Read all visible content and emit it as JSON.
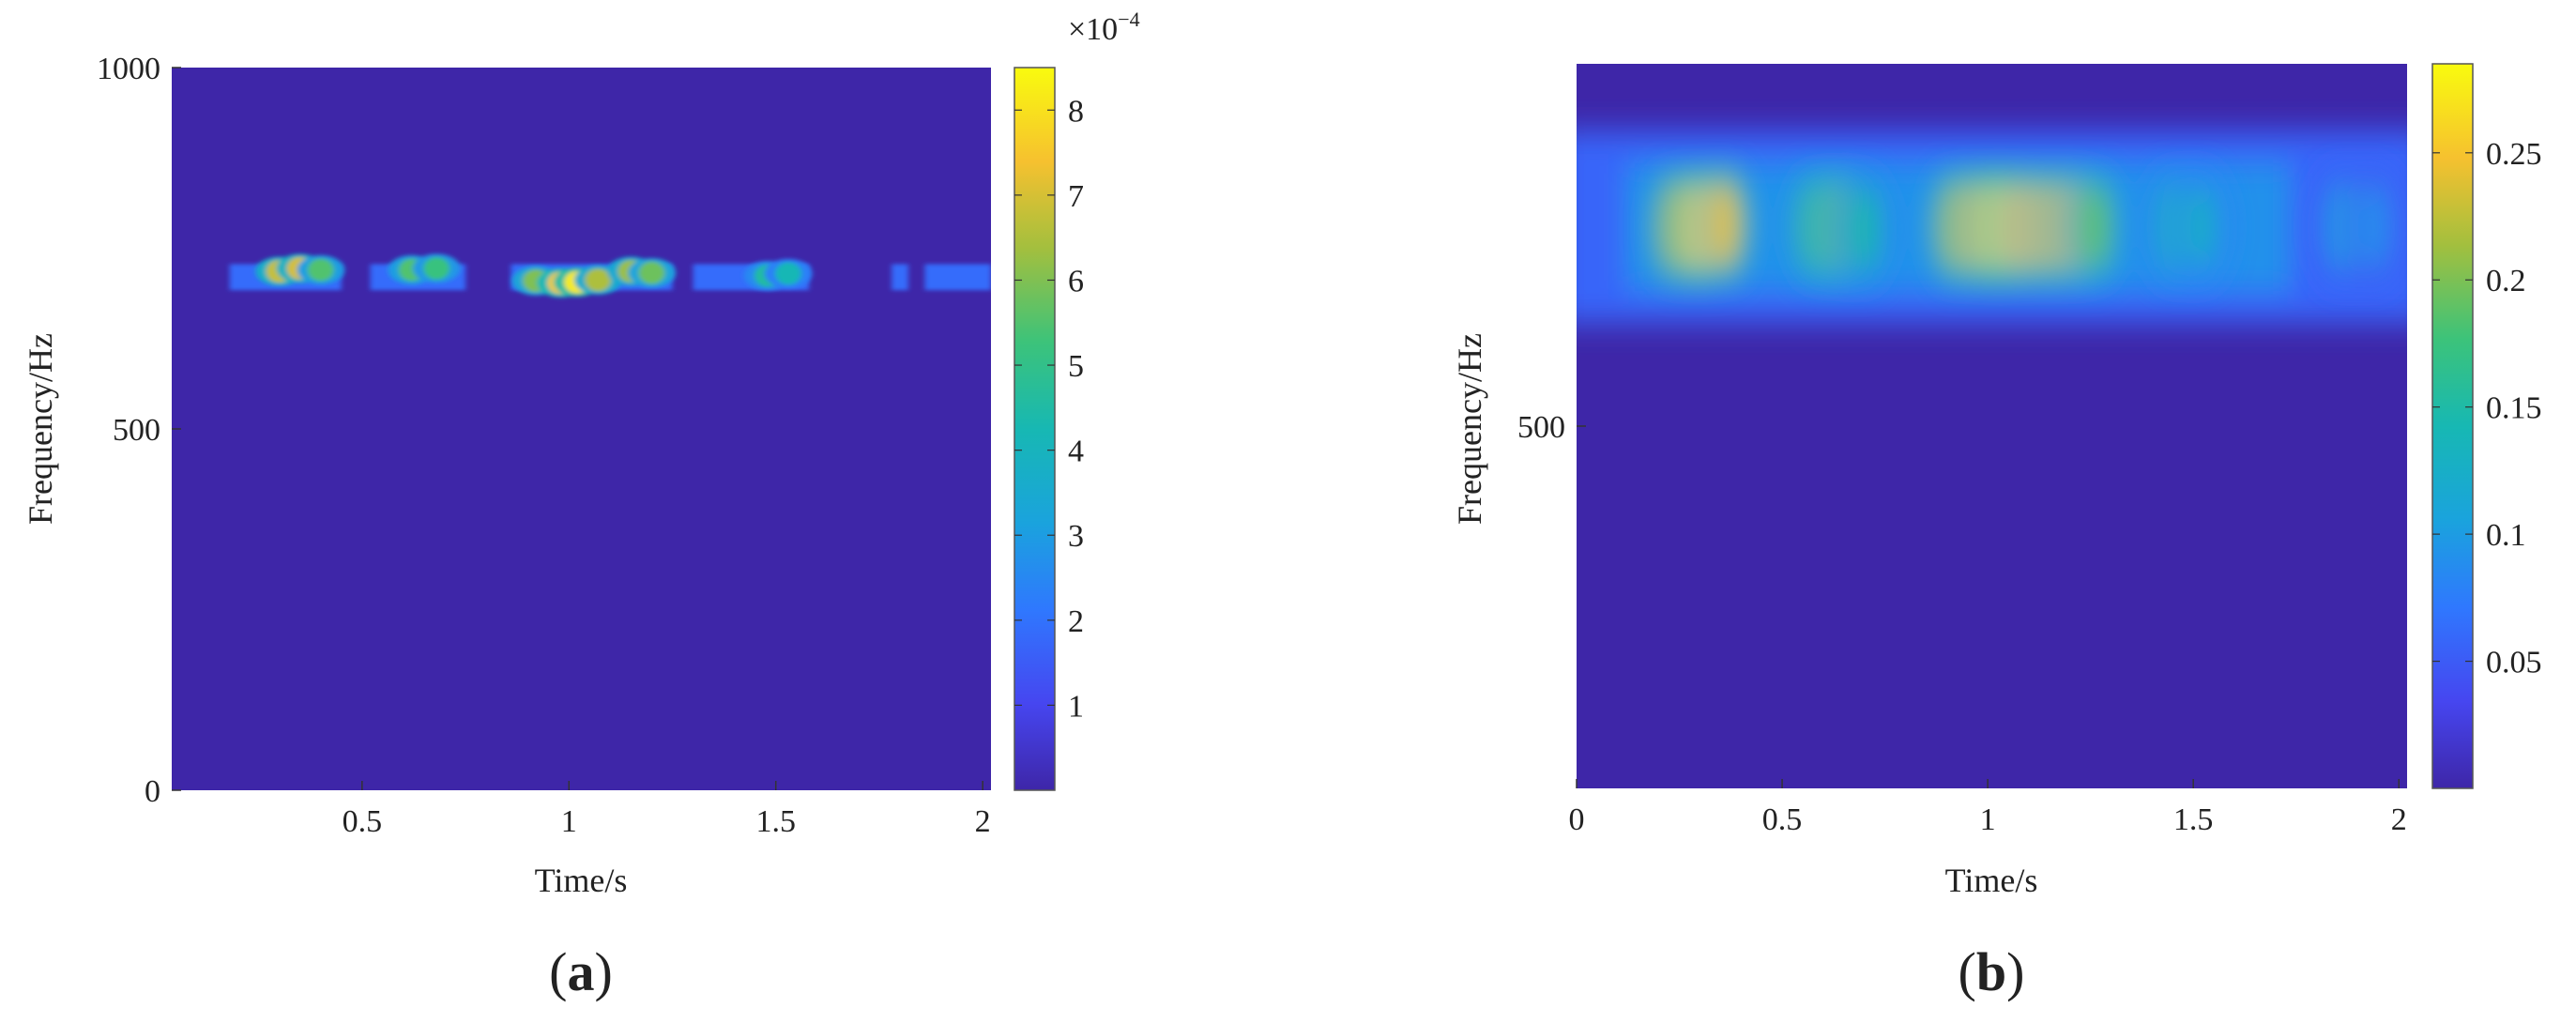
{
  "chart_data": [
    {
      "type": "heatmap",
      "panel_label_open": "(",
      "panel_label_letter": "a",
      "panel_label_close": ")",
      "xlabel": "Time/s",
      "ylabel": "Frequency/Hz",
      "xlim": [
        0.04,
        2.02
      ],
      "ylim": [
        0,
        1000
      ],
      "xticks": [
        0.5,
        1,
        1.5,
        2
      ],
      "xtick_labels": [
        "0.5",
        "1",
        "1.5",
        "2"
      ],
      "yticks": [
        0,
        500,
        1000
      ],
      "ytick_labels": [
        "0",
        "500",
        "1000"
      ],
      "colorbar": {
        "range": [
          0,
          8.5
        ],
        "ticks": [
          1,
          2,
          3,
          4,
          5,
          6,
          7,
          8
        ],
        "tick_labels": [
          "1",
          "2",
          "3",
          "4",
          "5",
          "6",
          "7",
          "8"
        ],
        "multiplier_base": "×10",
        "multiplier_exp": "−4"
      },
      "band": {
        "freq_center": 710,
        "freq_halfwidth": 18
      },
      "hotspots": [
        {
          "t": 0.3,
          "f": 718,
          "value": 6.8
        },
        {
          "t": 0.35,
          "f": 722,
          "value": 7.0
        },
        {
          "t": 0.4,
          "f": 720,
          "value": 5.5
        },
        {
          "t": 0.62,
          "f": 720,
          "value": 5.5
        },
        {
          "t": 0.68,
          "f": 722,
          "value": 5.2
        },
        {
          "t": 0.92,
          "f": 705,
          "value": 6.0
        },
        {
          "t": 0.98,
          "f": 702,
          "value": 7.6
        },
        {
          "t": 1.02,
          "f": 703,
          "value": 8.2
        },
        {
          "t": 1.07,
          "f": 706,
          "value": 6.5
        },
        {
          "t": 1.15,
          "f": 718,
          "value": 6.3
        },
        {
          "t": 1.2,
          "f": 716,
          "value": 5.8
        },
        {
          "t": 1.48,
          "f": 712,
          "value": 4.6
        },
        {
          "t": 1.53,
          "f": 715,
          "value": 4.2
        }
      ]
    },
    {
      "type": "heatmap",
      "panel_label_open": "(",
      "panel_label_letter": "b",
      "panel_label_close": ")",
      "xlabel": "Time/s",
      "ylabel": "Frequency/Hz",
      "xlim": [
        0,
        2.02
      ],
      "ylim": [
        0,
        1000
      ],
      "xticks": [
        0,
        0.5,
        1,
        1.5,
        2
      ],
      "xtick_labels": [
        "0",
        "0.5",
        "1",
        "1.5",
        "2"
      ],
      "yticks": [
        500
      ],
      "ytick_labels": [
        "500"
      ],
      "colorbar": {
        "range": [
          0,
          0.285
        ],
        "ticks": [
          0.05,
          0.1,
          0.15,
          0.2,
          0.25
        ],
        "tick_labels": [
          "0.05",
          "0.1",
          "0.15",
          "0.2",
          "0.25"
        ]
      },
      "band": {
        "freq_center": 775,
        "freq_halfwidth": 120
      },
      "hotspots": [
        {
          "t": 0.24,
          "f": 775,
          "value": 0.22
        },
        {
          "t": 0.3,
          "f": 775,
          "value": 0.26
        },
        {
          "t": 0.36,
          "f": 778,
          "value": 0.24
        },
        {
          "t": 0.58,
          "f": 775,
          "value": 0.18
        },
        {
          "t": 0.64,
          "f": 775,
          "value": 0.19
        },
        {
          "t": 0.7,
          "f": 772,
          "value": 0.15
        },
        {
          "t": 0.92,
          "f": 775,
          "value": 0.22
        },
        {
          "t": 0.98,
          "f": 775,
          "value": 0.25
        },
        {
          "t": 1.03,
          "f": 775,
          "value": 0.27
        },
        {
          "t": 1.08,
          "f": 775,
          "value": 0.25
        },
        {
          "t": 1.14,
          "f": 775,
          "value": 0.24
        },
        {
          "t": 1.2,
          "f": 775,
          "value": 0.23
        },
        {
          "t": 1.26,
          "f": 775,
          "value": 0.19
        },
        {
          "t": 1.45,
          "f": 775,
          "value": 0.14
        },
        {
          "t": 1.52,
          "f": 775,
          "value": 0.13
        },
        {
          "t": 1.86,
          "f": 775,
          "value": 0.1
        },
        {
          "t": 1.94,
          "f": 775,
          "value": 0.09
        }
      ]
    }
  ]
}
